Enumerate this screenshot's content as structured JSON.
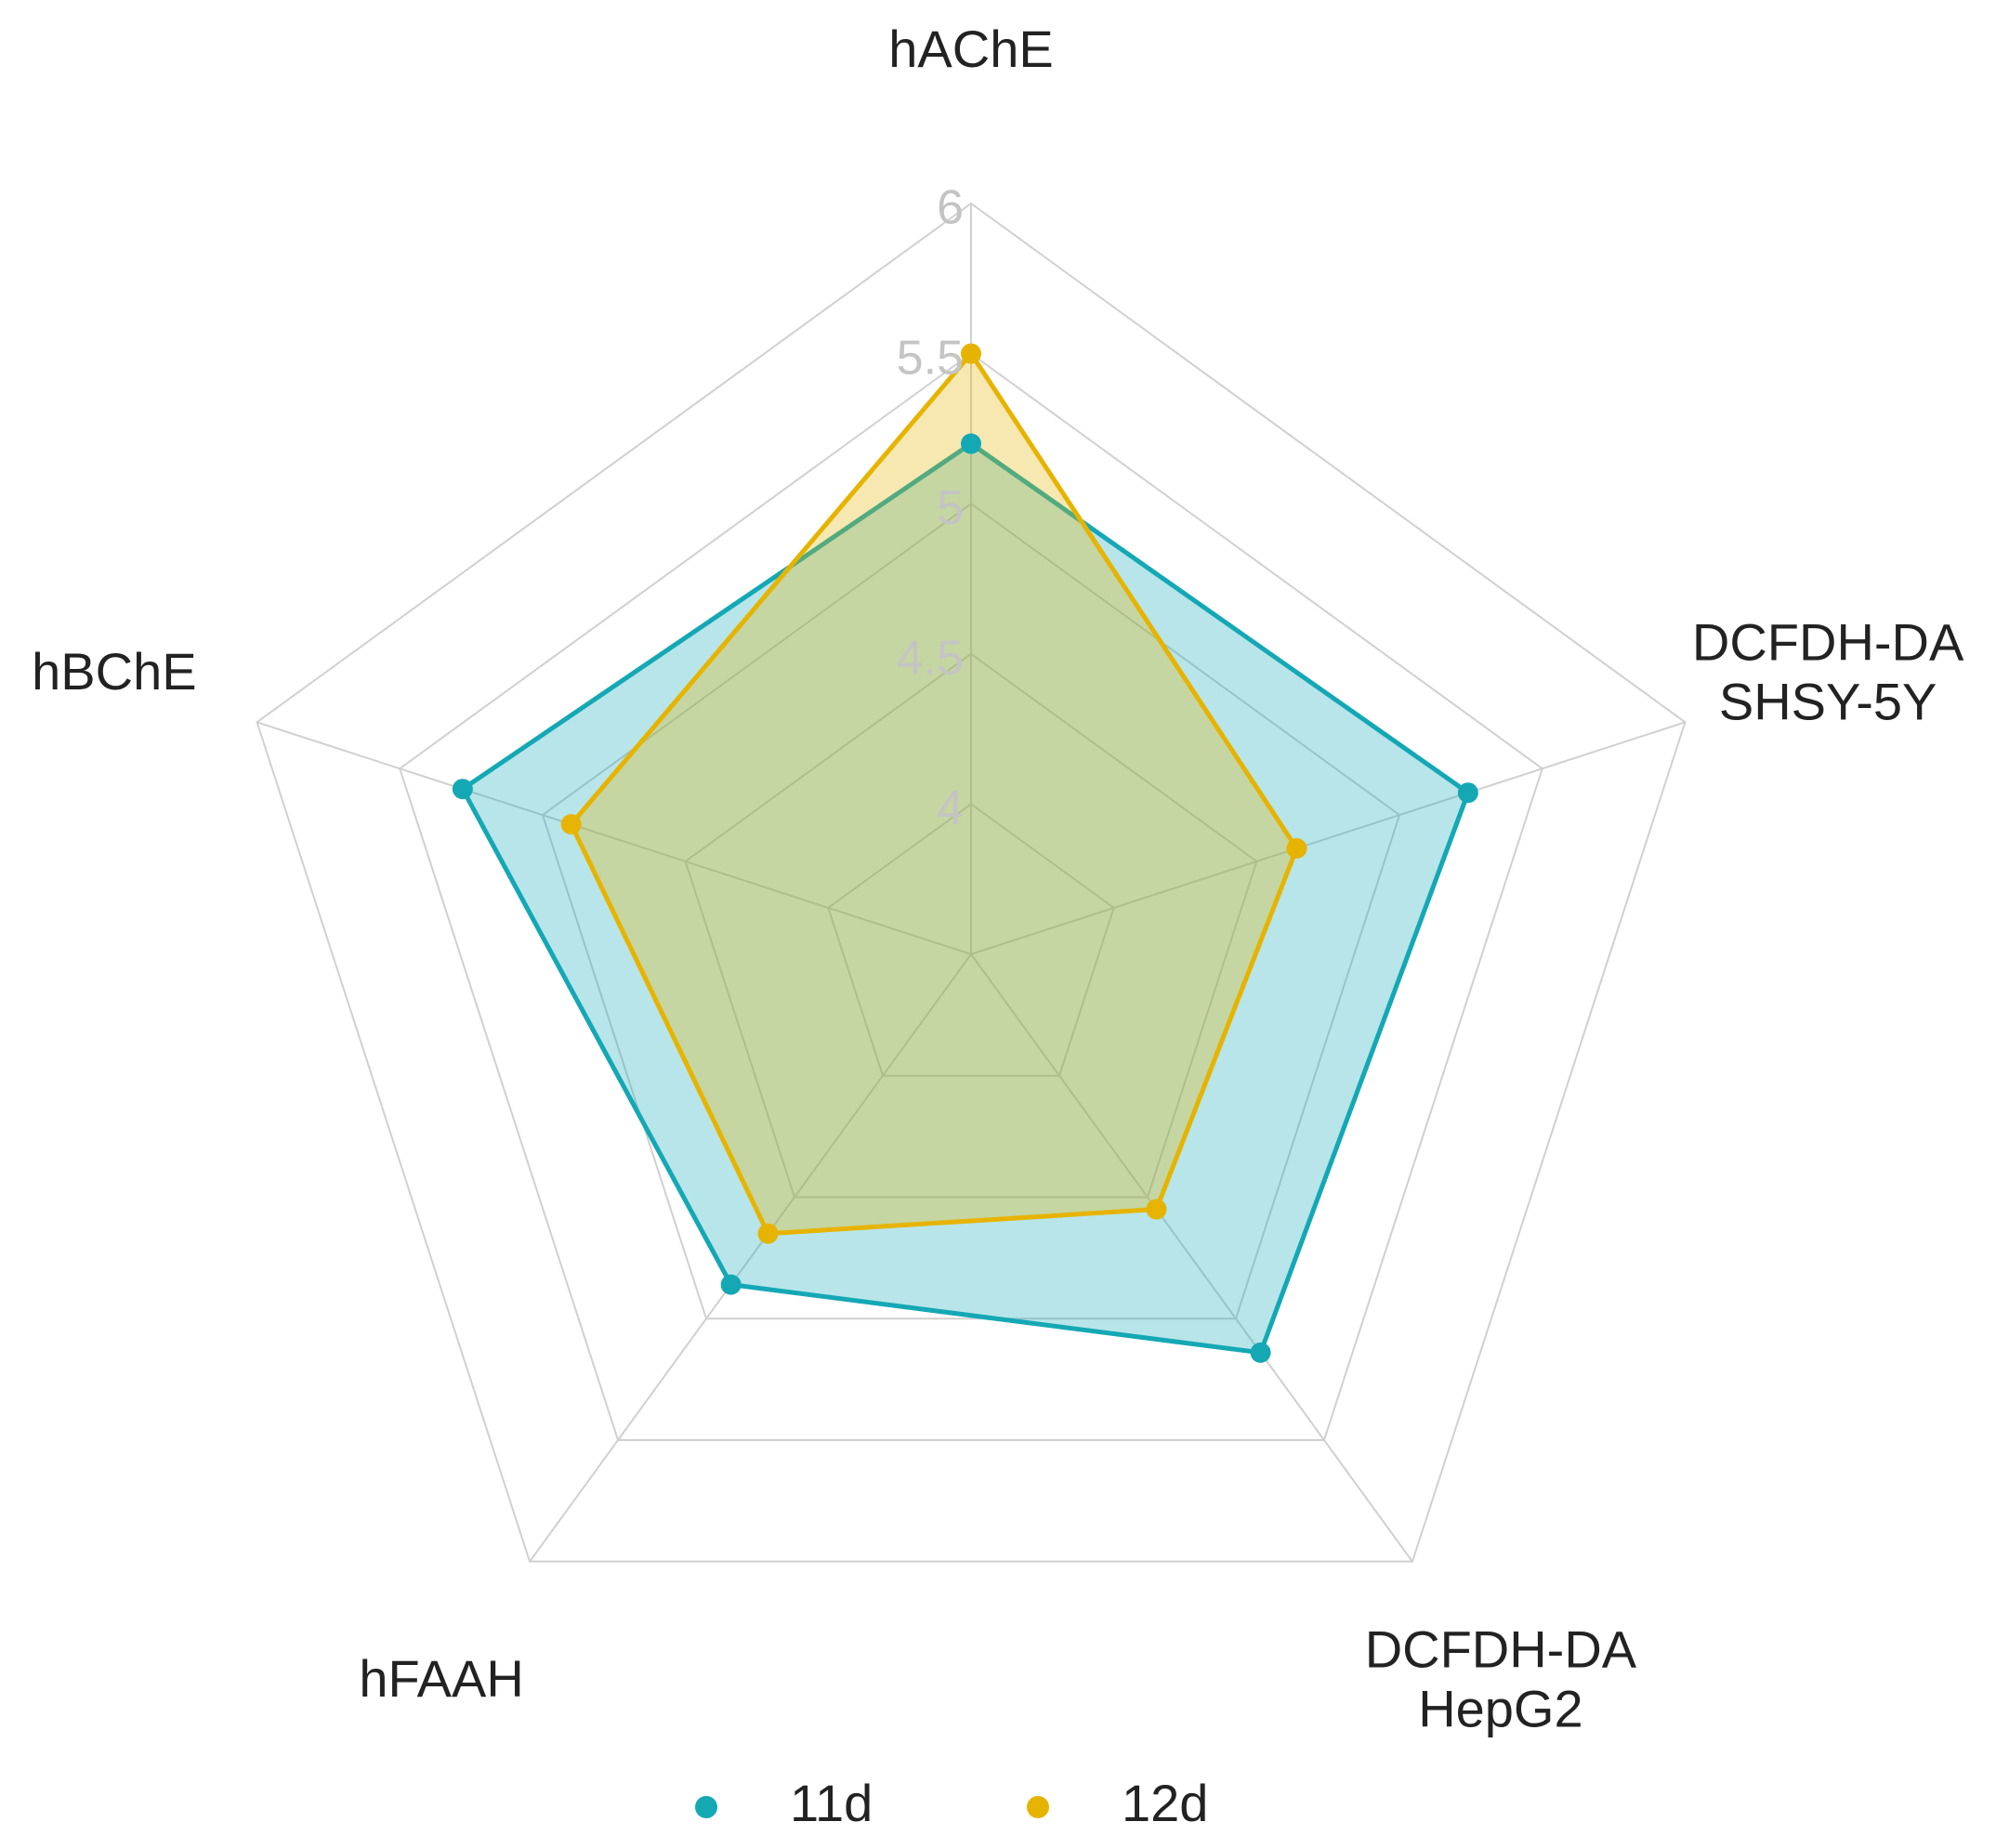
{
  "chart_data": {
    "type": "radar",
    "categories": [
      "hAChE",
      "DCFDH-DA\nSHSY-5Y",
      "DCFDH-DA\nHepG2",
      "hFAAH",
      "hBChE"
    ],
    "series": [
      {
        "name": "11d",
        "color": "#14a8b5",
        "values": [
          5.2,
          5.24,
          5.14,
          4.86,
          5.28
        ]
      },
      {
        "name": "12d",
        "color": "#e6b400",
        "values": [
          5.5,
          4.64,
          4.55,
          4.65,
          4.9
        ]
      }
    ],
    "ylim": [
      3.5,
      6
    ],
    "yticks": [
      4,
      4.5,
      5,
      5.5,
      6
    ],
    "grid": true,
    "legend": "bottom"
  }
}
